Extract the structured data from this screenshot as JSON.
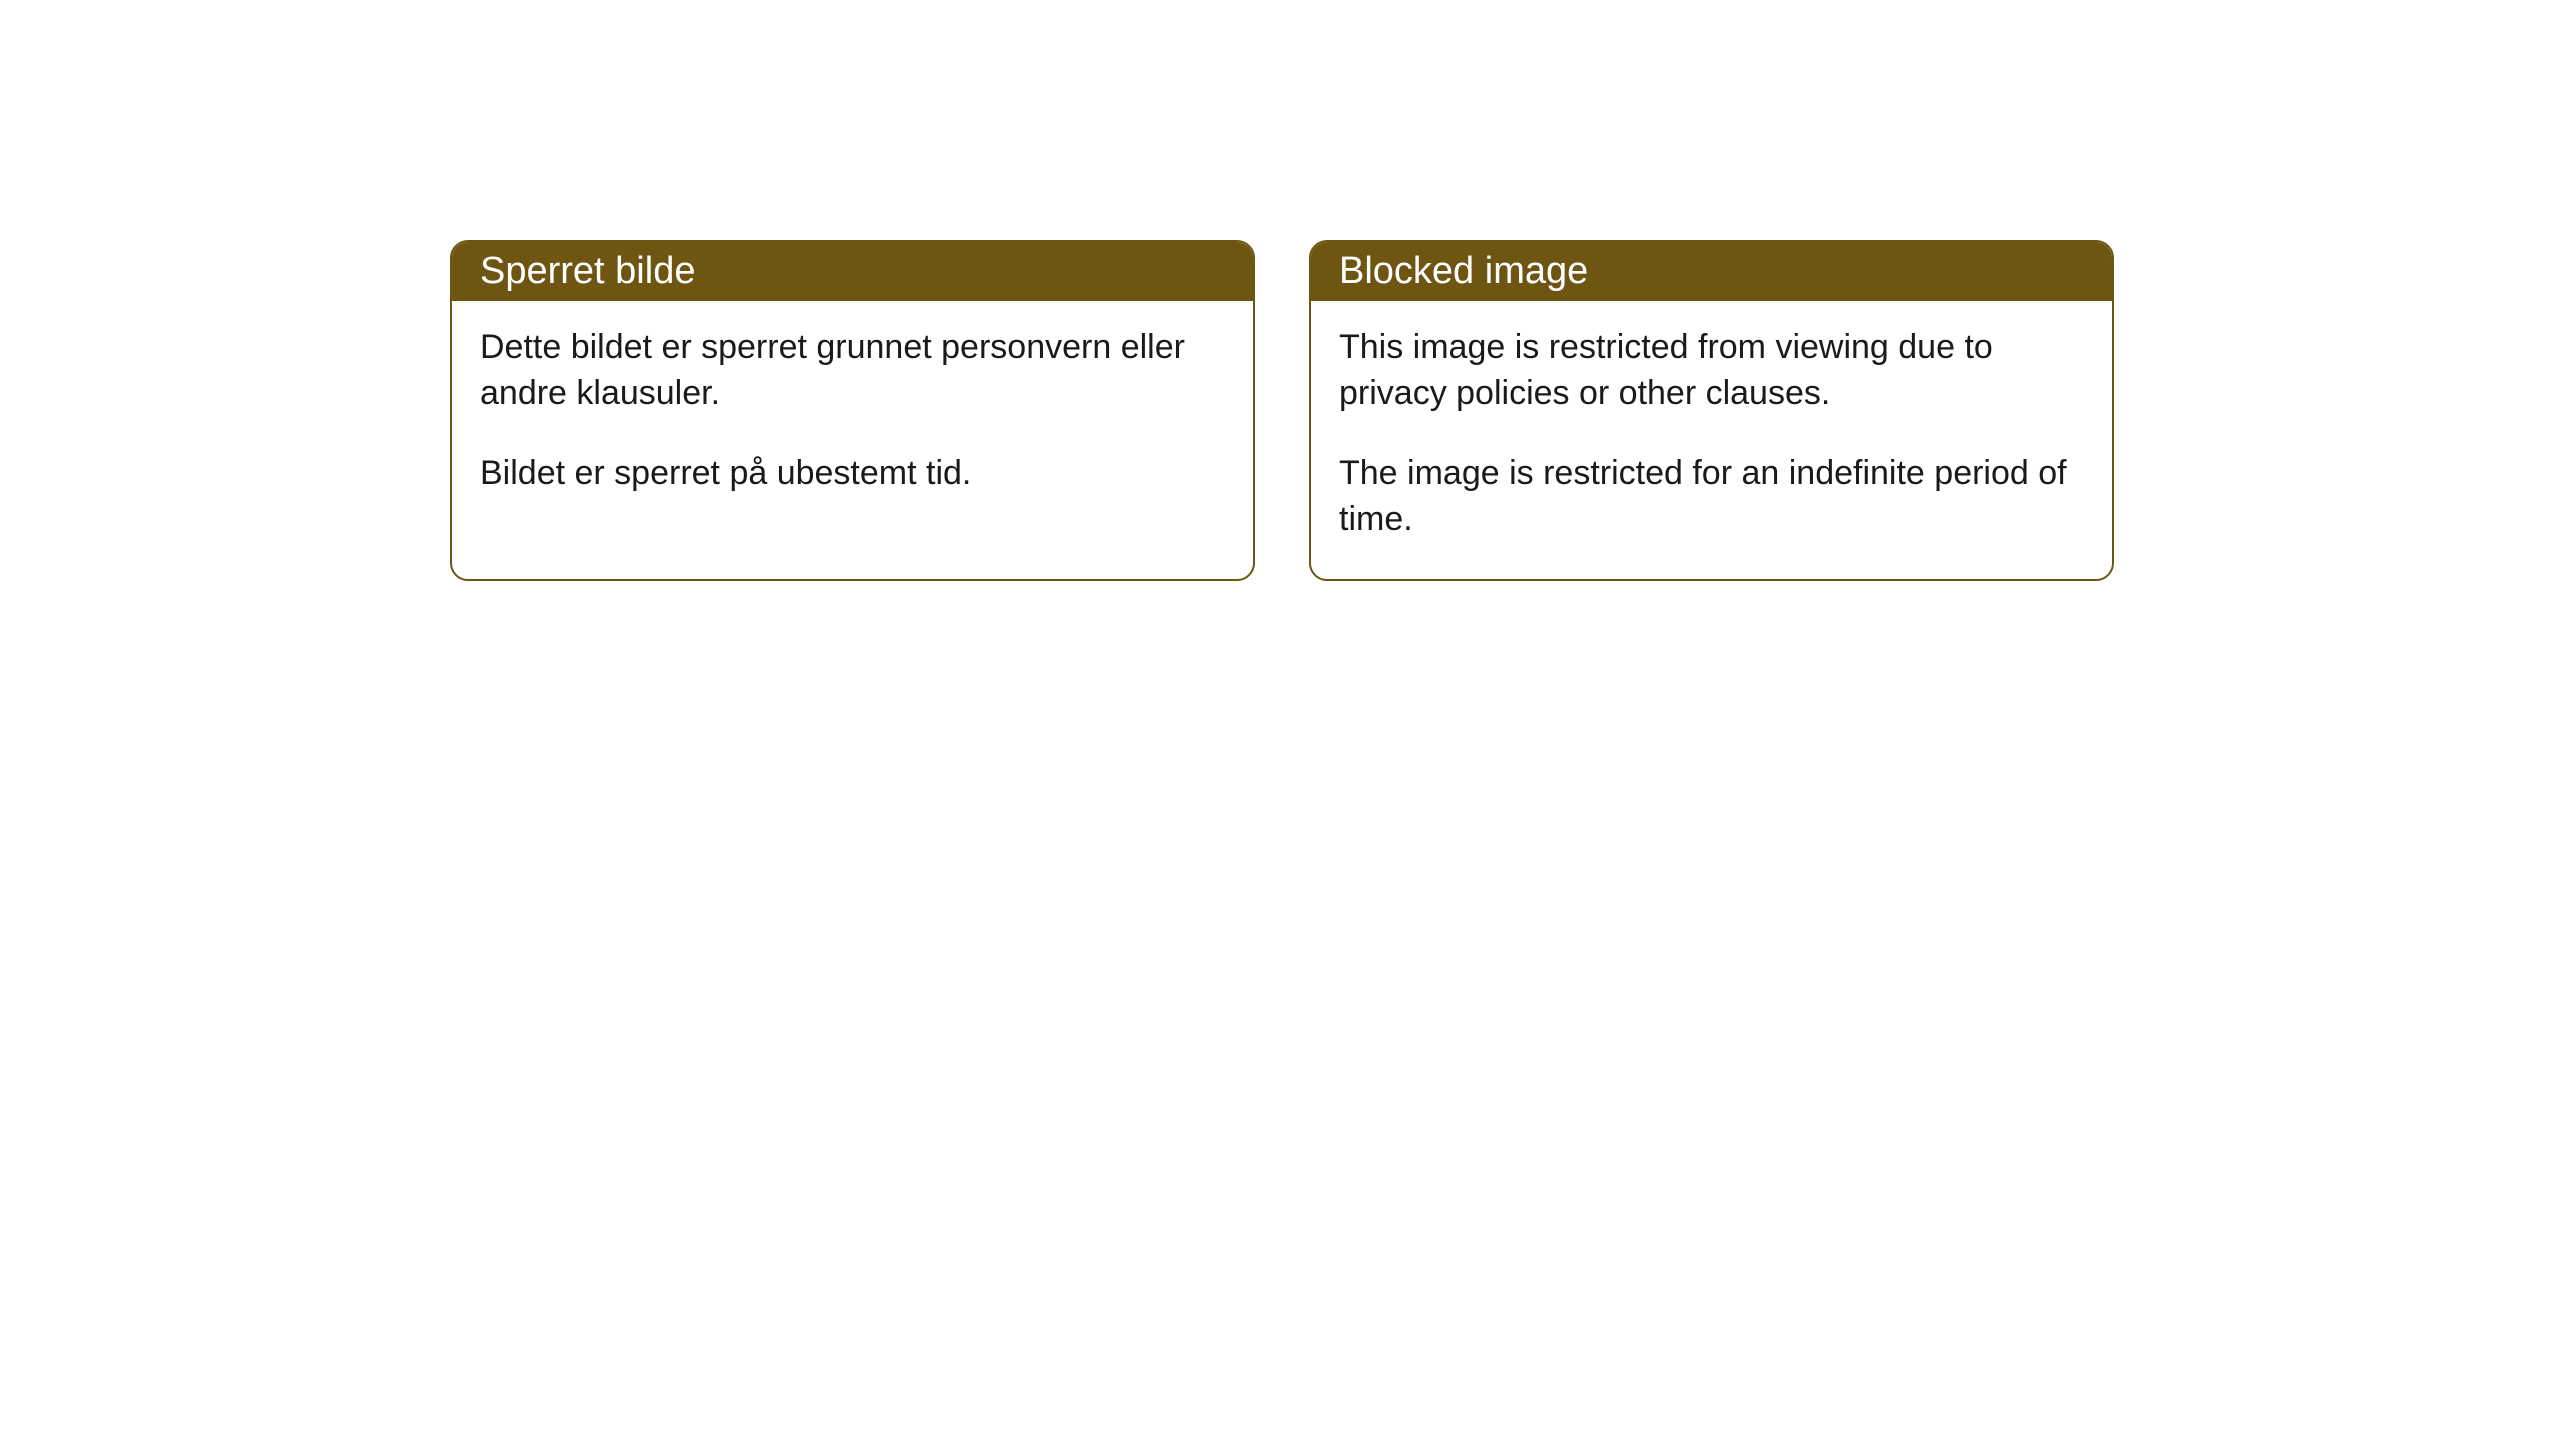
{
  "cards": [
    {
      "title": "Sperret bilde",
      "paragraph1": "Dette bildet er sperret grunnet personvern eller andre klausuler.",
      "paragraph2": "Bildet er sperret på ubestemt tid."
    },
    {
      "title": "Blocked image",
      "paragraph1": "This image is restricted from viewing due to privacy policies or other clauses.",
      "paragraph2": "The image is restricted for an indefinite period of time."
    }
  ],
  "style": {
    "header_bg": "#6e5612",
    "header_color": "#ffffff",
    "border_color": "#6e5612",
    "body_bg": "#ffffff",
    "text_color": "#1a1a1a",
    "border_radius": 18,
    "title_fontsize": 38,
    "body_fontsize": 34
  }
}
